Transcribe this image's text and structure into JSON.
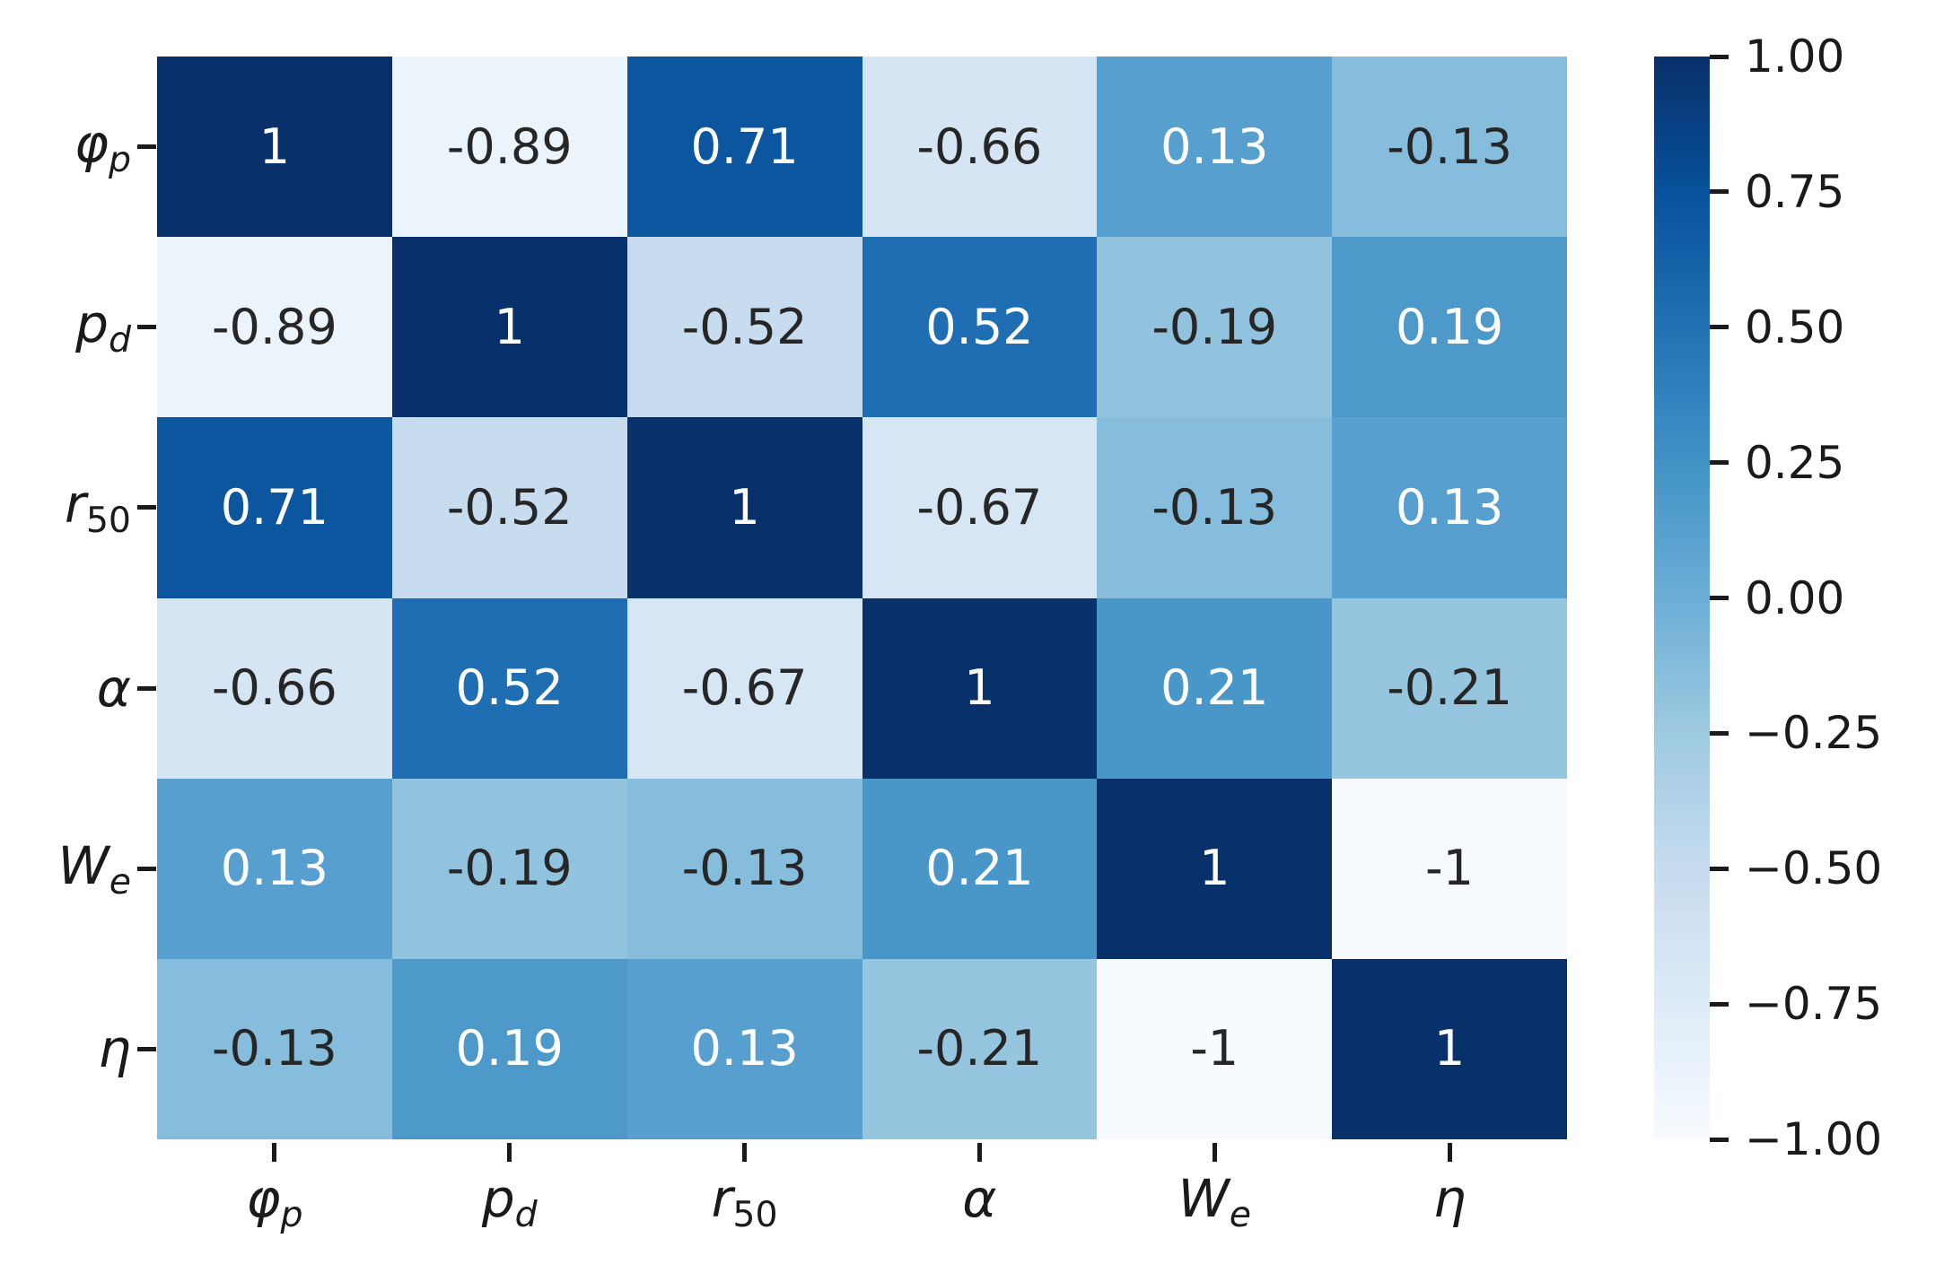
{
  "chart_data": {
    "type": "heatmap",
    "title": "",
    "xlabel": "",
    "ylabel": "",
    "colormap": "Blues",
    "vmin": -1,
    "vmax": 1,
    "grid": false,
    "legend_position": "right-colorbar",
    "variables": [
      {
        "base": "φ",
        "sub": "p"
      },
      {
        "base": "p",
        "sub": "d"
      },
      {
        "base": "r",
        "sub": "50"
      },
      {
        "base": "α",
        "sub": ""
      },
      {
        "base": "W",
        "sub": "e"
      },
      {
        "base": "η",
        "sub": ""
      }
    ],
    "matrix": [
      [
        1.0,
        -0.89,
        0.71,
        -0.66,
        0.13,
        -0.13
      ],
      [
        -0.89,
        1.0,
        -0.52,
        0.52,
        -0.19,
        0.19
      ],
      [
        0.71,
        -0.52,
        1.0,
        -0.67,
        -0.13,
        0.13
      ],
      [
        -0.66,
        0.52,
        -0.67,
        1.0,
        0.21,
        -0.21
      ],
      [
        0.13,
        -0.19,
        -0.13,
        0.21,
        1.0,
        -1.0
      ],
      [
        -0.13,
        0.19,
        0.13,
        -0.21,
        -1.0,
        1.0
      ]
    ],
    "cell_labels": [
      [
        "1",
        "-0.89",
        "0.71",
        "-0.66",
        "0.13",
        "-0.13"
      ],
      [
        "-0.89",
        "1",
        "-0.52",
        "0.52",
        "-0.19",
        "0.19"
      ],
      [
        "0.71",
        "-0.52",
        "1",
        "-0.67",
        "-0.13",
        "0.13"
      ],
      [
        "-0.66",
        "0.52",
        "-0.67",
        "1",
        "0.21",
        "-0.21"
      ],
      [
        "0.13",
        "-0.19",
        "-0.13",
        "0.21",
        "1",
        "-1"
      ],
      [
        "-0.13",
        "0.19",
        "0.13",
        "-0.21",
        "-1",
        "1"
      ]
    ],
    "colorbar_ticks": [
      "1.00",
      "0.75",
      "0.50",
      "0.25",
      "0.00",
      "−0.25",
      "−0.50",
      "−0.75",
      "−1.00"
    ],
    "colormap_stops": [
      "#f7fbff",
      "#deebf7",
      "#c6dbef",
      "#9ecae1",
      "#6baed6",
      "#4292c6",
      "#2171b5",
      "#08519c",
      "#08306b"
    ],
    "annotation_text_colors": {
      "light": "#ffffff",
      "dark": "#262626"
    },
    "axis_color": "#1a1a1a"
  }
}
